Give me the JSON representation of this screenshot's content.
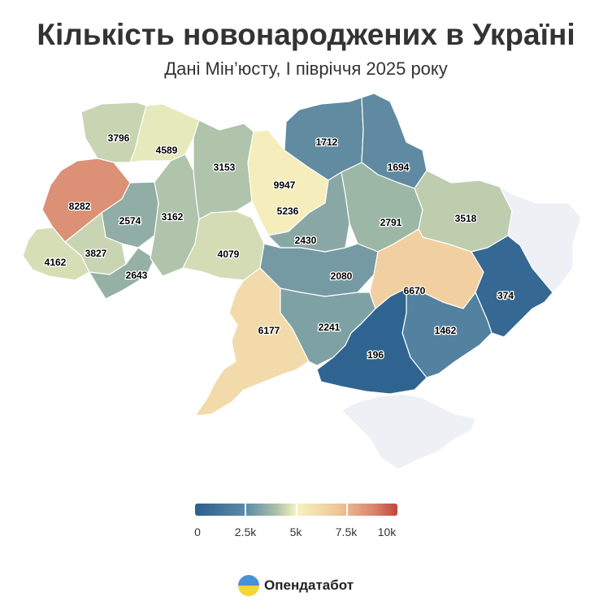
{
  "header": {
    "title": "Кількість новонароджених в Україні",
    "subtitle": "Дані Мін’юсту, І півріччя 2025 року"
  },
  "map": {
    "no_data_color": "#eef0f6",
    "regions": [
      {
        "key": "volyn",
        "value": "3796"
      },
      {
        "key": "rivne",
        "value": "4589"
      },
      {
        "key": "lviv",
        "value": "8282"
      },
      {
        "key": "ternopil",
        "value": "2574"
      },
      {
        "key": "zakarpattia",
        "value": "4162"
      },
      {
        "key": "ivano_frankivsk",
        "value": "3827"
      },
      {
        "key": "chernivtsi",
        "value": "2643"
      },
      {
        "key": "khmelnytskyi",
        "value": "3162"
      },
      {
        "key": "zhytomyr",
        "value": "3153"
      },
      {
        "key": "vinnytsia",
        "value": "4079"
      },
      {
        "key": "kyiv_city",
        "value": "9947"
      },
      {
        "key": "kyiv_oblast",
        "value": "5236"
      },
      {
        "key": "chernihiv",
        "value": "1712"
      },
      {
        "key": "sumy",
        "value": "1694"
      },
      {
        "key": "cherkasy",
        "value": "2430"
      },
      {
        "key": "poltava",
        "value": "2791"
      },
      {
        "key": "kharkiv",
        "value": "3518"
      },
      {
        "key": "kirovohrad",
        "value": "2080"
      },
      {
        "key": "odesa",
        "value": "6177"
      },
      {
        "key": "mykolaiv",
        "value": "2241"
      },
      {
        "key": "dnipropetrovsk",
        "value": "6670"
      },
      {
        "key": "donetsk",
        "value": "374"
      },
      {
        "key": "zaporizhzhia",
        "value": "1462"
      },
      {
        "key": "kherson",
        "value": "196"
      },
      {
        "key": "luhansk",
        "value": null
      },
      {
        "key": "crimea",
        "value": null
      }
    ]
  },
  "legend": {
    "ticks": [
      "0",
      "2.5k",
      "5k",
      "7.5k",
      "10k"
    ],
    "colors": [
      "#2b5f8e",
      "#5e8aa6",
      "#a9c0a8",
      "#f6f3c0",
      "#f0c89a",
      "#d98770",
      "#c0453e"
    ]
  },
  "brand": {
    "name": "Опендатабот"
  }
}
